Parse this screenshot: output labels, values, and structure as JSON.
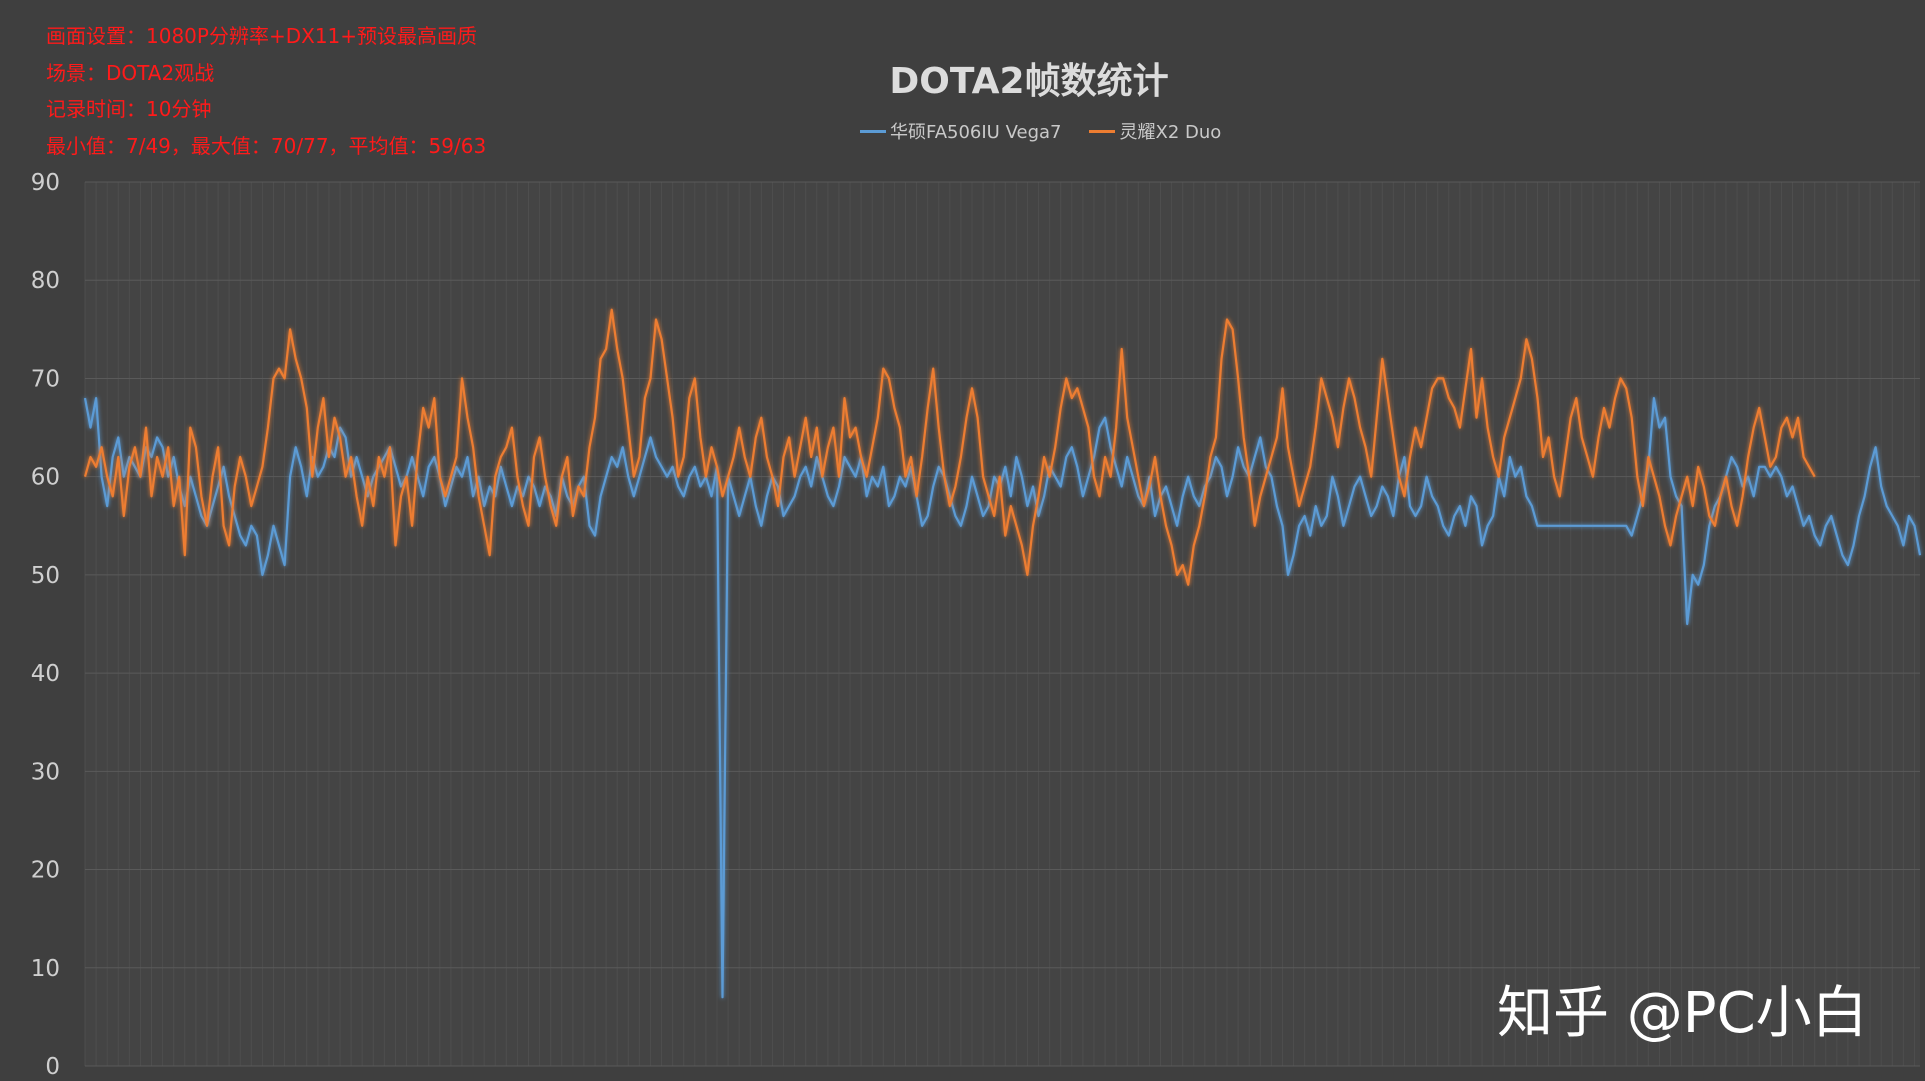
{
  "info_lines": [
    "画面设置：1080P分辨率+DX11+预设最高画质",
    "场景：DOTA2观战",
    "记录时间：10分钟",
    "最小值：7/49，最大值：70/77，平均值：59/63"
  ],
  "watermark": "知乎 @PC小白",
  "colors": {
    "background": "#3f3f3f",
    "info_text": "#ff1a1a",
    "grid": "#555555"
  },
  "chart_data": {
    "type": "line",
    "title": "DOTA2帧数统计",
    "xlabel": "",
    "ylabel": "",
    "ylim": [
      0,
      90
    ],
    "yticks": [
      0,
      10,
      20,
      30,
      40,
      50,
      60,
      70,
      80,
      90
    ],
    "grid": true,
    "legend": "top-center",
    "series": [
      {
        "name": "华硕FA506IU Vega7",
        "color": "#5b9bd5",
        "values": [
          68,
          65,
          68,
          60,
          57,
          62,
          64,
          60,
          62,
          61,
          60,
          63,
          62,
          64,
          63,
          60,
          62,
          59,
          57,
          60,
          58,
          56,
          55,
          57,
          59,
          61,
          58,
          56,
          54,
          53,
          55,
          54,
          50,
          52,
          55,
          53,
          51,
          60,
          63,
          61,
          58,
          62,
          60,
          61,
          63,
          62,
          65,
          64,
          60,
          62,
          60,
          58,
          60,
          61,
          62,
          63,
          61,
          59,
          60,
          62,
          60,
          58,
          61,
          62,
          60,
          57,
          59,
          61,
          60,
          62,
          58,
          60,
          57,
          59,
          58,
          61,
          59,
          57,
          59,
          58,
          60,
          59,
          57,
          59,
          58,
          56,
          60,
          58,
          57,
          59,
          60,
          55,
          54,
          58,
          60,
          62,
          61,
          63,
          60,
          58,
          60,
          62,
          64,
          62,
          61,
          60,
          61,
          59,
          58,
          60,
          61,
          59,
          60,
          58,
          61,
          7,
          60,
          58,
          56,
          58,
          60,
          57,
          55,
          58,
          60,
          59,
          56,
          57,
          58,
          60,
          61,
          59,
          62,
          60,
          58,
          57,
          59,
          62,
          61,
          60,
          62,
          58,
          60,
          59,
          61,
          57,
          58,
          60,
          59,
          61,
          58,
          55,
          56,
          59,
          61,
          60,
          58,
          56,
          55,
          57,
          60,
          58,
          56,
          57,
          60,
          59,
          61,
          58,
          62,
          60,
          57,
          59,
          56,
          58,
          61,
          60,
          59,
          62,
          63,
          61,
          58,
          60,
          62,
          65,
          66,
          63,
          61,
          59,
          62,
          60,
          58,
          57,
          60,
          56,
          58,
          59,
          57,
          55,
          58,
          60,
          58,
          57,
          59,
          60,
          62,
          61,
          58,
          60,
          63,
          61,
          60,
          62,
          64,
          61,
          60,
          57,
          55,
          50,
          52,
          55,
          56,
          54,
          57,
          55,
          56,
          60,
          58,
          55,
          57,
          59,
          60,
          58,
          56,
          57,
          59,
          58,
          56,
          60,
          62,
          57,
          56,
          57,
          60,
          58,
          57,
          55,
          54,
          56,
          57,
          55,
          58,
          57,
          53,
          55,
          56,
          60,
          58,
          62,
          60,
          61,
          58,
          57,
          55,
          55,
          55,
          55,
          55,
          55,
          55,
          55,
          55,
          55,
          55,
          55,
          55,
          55,
          55,
          55,
          55,
          54,
          56,
          58,
          61,
          68,
          65,
          66,
          60,
          58,
          57,
          45,
          50,
          49,
          51,
          55,
          57,
          58,
          60,
          62,
          61,
          59,
          60,
          58,
          61,
          61,
          60,
          61,
          60,
          58,
          59,
          57,
          55,
          56,
          54,
          53,
          55,
          56,
          54,
          52,
          51,
          53,
          56,
          58,
          61,
          63,
          59,
          57,
          56,
          55,
          53,
          56,
          55,
          52
        ]
      },
      {
        "name": "灵耀X2 Duo",
        "color": "#ed7d31",
        "values": [
          60,
          62,
          61,
          63,
          60,
          58,
          62,
          56,
          61,
          63,
          60,
          65,
          58,
          62,
          60,
          63,
          57,
          60,
          52,
          65,
          63,
          58,
          55,
          60,
          63,
          55,
          53,
          59,
          62,
          60,
          57,
          59,
          61,
          65,
          70,
          71,
          70,
          75,
          72,
          70,
          67,
          60,
          65,
          68,
          62,
          66,
          64,
          60,
          62,
          58,
          55,
          60,
          57,
          62,
          60,
          63,
          53,
          58,
          60,
          55,
          62,
          67,
          65,
          68,
          60,
          58,
          60,
          62,
          70,
          66,
          63,
          58,
          55,
          52,
          60,
          62,
          63,
          65,
          60,
          57,
          55,
          62,
          64,
          60,
          57,
          55,
          60,
          62,
          56,
          59,
          58,
          63,
          66,
          72,
          73,
          77,
          73,
          70,
          65,
          60,
          62,
          68,
          70,
          76,
          74,
          70,
          66,
          60,
          62,
          68,
          70,
          64,
          60,
          63,
          61,
          58,
          60,
          62,
          65,
          62,
          60,
          64,
          66,
          62,
          60,
          57,
          62,
          64,
          60,
          63,
          66,
          62,
          65,
          60,
          63,
          65,
          60,
          68,
          64,
          65,
          62,
          60,
          63,
          66,
          71,
          70,
          67,
          65,
          60,
          62,
          58,
          62,
          67,
          71,
          65,
          60,
          57,
          59,
          62,
          66,
          69,
          66,
          60,
          58,
          56,
          60,
          54,
          57,
          55,
          53,
          50,
          55,
          58,
          62,
          60,
          63,
          67,
          70,
          68,
          69,
          67,
          65,
          60,
          58,
          62,
          60,
          65,
          73,
          66,
          63,
          60,
          57,
          59,
          62,
          58,
          55,
          53,
          50,
          51,
          49,
          53,
          55,
          58,
          62,
          64,
          72,
          76,
          75,
          70,
          64,
          60,
          55,
          58,
          60,
          62,
          64,
          69,
          63,
          60,
          57,
          59,
          61,
          65,
          70,
          68,
          66,
          63,
          67,
          70,
          68,
          65,
          63,
          60,
          66,
          72,
          68,
          64,
          60,
          58,
          62,
          65,
          63,
          66,
          69,
          70,
          70,
          68,
          67,
          65,
          69,
          73,
          66,
          70,
          65,
          62,
          60,
          64,
          66,
          68,
          70,
          74,
          72,
          68,
          62,
          64,
          60,
          58,
          62,
          66,
          68,
          64,
          62,
          60,
          64,
          67,
          65,
          68,
          70,
          69,
          66,
          60,
          57,
          62,
          60,
          58,
          55,
          53,
          56,
          58,
          60,
          57,
          61,
          59,
          56,
          55,
          58,
          60,
          57,
          55,
          58,
          62,
          65,
          67,
          64,
          61,
          62,
          65,
          66,
          64,
          66,
          62,
          61,
          60
        ]
      }
    ]
  }
}
